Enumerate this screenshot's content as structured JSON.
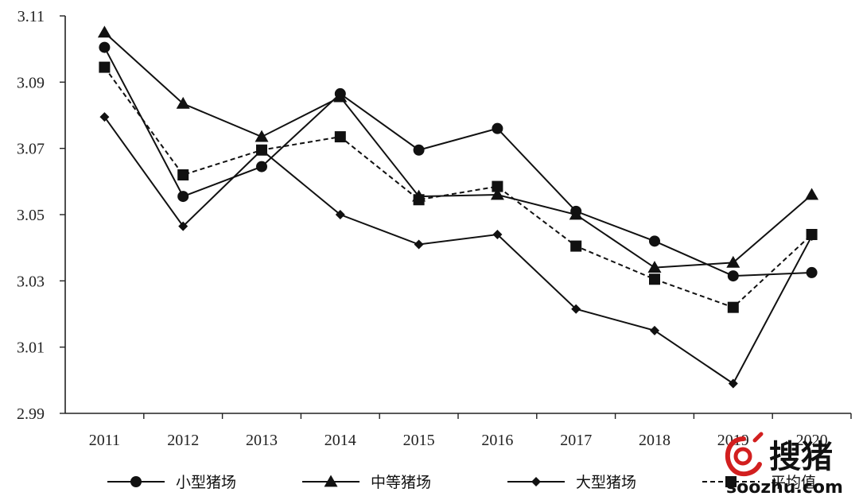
{
  "chart_data": {
    "type": "line",
    "title": "",
    "xlabel": "",
    "ylabel": "",
    "x": [
      "2011",
      "2012",
      "2013",
      "2014",
      "2015",
      "2016",
      "2017",
      "2018",
      "2019",
      "2020"
    ],
    "ylim": [
      2.99,
      3.11
    ],
    "yticks": [
      "2.99",
      "3.01",
      "3.03",
      "3.05",
      "3.07",
      "3.09",
      "3.11"
    ],
    "legend_position": "bottom",
    "grid": false,
    "series": [
      {
        "name": "小型猪场",
        "marker": "circle",
        "dash": "solid",
        "values": [
          3.1005,
          3.0555,
          3.0645,
          3.0865,
          3.0695,
          3.076,
          3.051,
          3.042,
          3.0315,
          3.0325
        ]
      },
      {
        "name": "中等猪场",
        "marker": "triangle",
        "dash": "solid",
        "values": [
          3.105,
          3.0835,
          3.0735,
          3.0855,
          3.0555,
          3.056,
          3.05,
          3.034,
          3.0355,
          3.056
        ]
      },
      {
        "name": "大型猪场",
        "marker": "diamond",
        "dash": "solid",
        "values": [
          3.0795,
          3.0465,
          3.0695,
          3.05,
          3.041,
          3.044,
          3.0215,
          3.015,
          2.999,
          3.0435
        ]
      },
      {
        "name": "平均值",
        "marker": "square",
        "dash": "dashed",
        "values": [
          3.0945,
          3.062,
          3.0695,
          3.0735,
          3.0545,
          3.0585,
          3.0405,
          3.0305,
          3.022,
          3.044
        ]
      }
    ]
  },
  "watermark": {
    "text_cn": "搜猪",
    "url": "soozhu.com",
    "icon": "soozhu-logo-icon",
    "color": "#d21f1f"
  }
}
